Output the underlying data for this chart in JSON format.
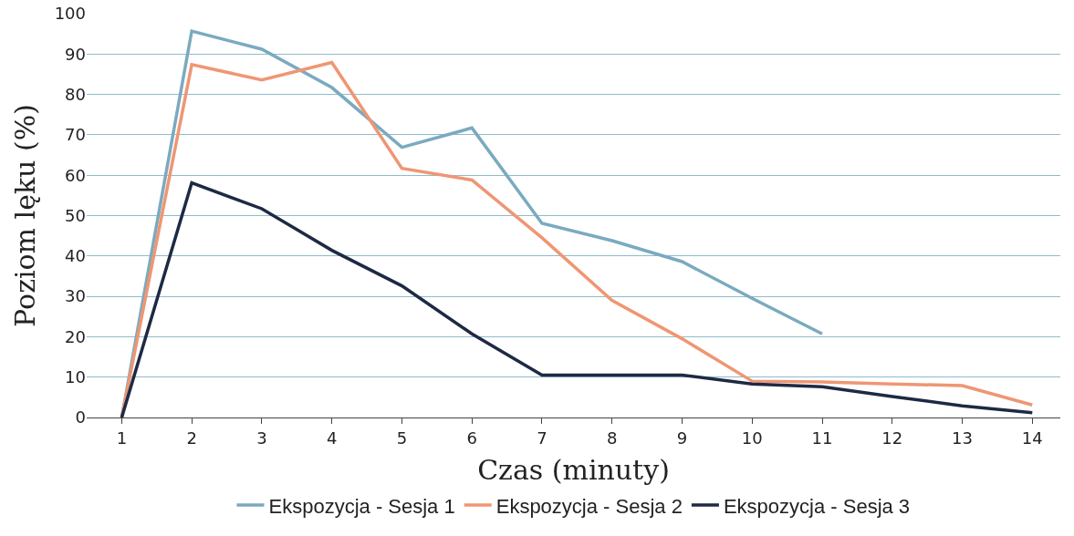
{
  "chart_data": {
    "type": "line",
    "xlabel": "Czas (minuty)",
    "ylabel": "Poziom lęku (%)",
    "x": [
      1,
      2,
      3,
      4,
      5,
      6,
      7,
      8,
      9,
      10,
      11,
      12,
      13,
      14
    ],
    "xlim": [
      0.5,
      14.4
    ],
    "xticks": [
      1,
      2,
      3,
      4,
      5,
      6,
      7,
      8,
      9,
      10,
      11,
      12,
      13,
      14
    ],
    "ylim": [
      0,
      100
    ],
    "yticks": [
      0,
      10,
      20,
      30,
      40,
      50,
      60,
      70,
      80,
      90,
      100
    ],
    "grid": "y",
    "legend": "bottom",
    "marker": "none",
    "line_style": "solid",
    "series": [
      {
        "name": "Ekspozycja - Sesja 1",
        "color": "#7aaabf",
        "values": [
          0,
          95.7,
          91.2,
          81.7,
          66.9,
          71.7,
          48.1,
          43.8,
          38.6,
          29.5,
          20.7,
          null,
          null,
          null
        ]
      },
      {
        "name": "Ekspozycja - Sesja 2",
        "color": "#ef9673",
        "values": [
          0,
          87.4,
          83.6,
          87.9,
          61.7,
          58.8,
          44.5,
          29,
          19.5,
          9,
          8.8,
          8.3,
          7.9,
          3.1
        ]
      },
      {
        "name": "Ekspozycja - Sesja 3",
        "color": "#1e2a44",
        "values": [
          0,
          58.1,
          51.7,
          41.4,
          32.6,
          20.7,
          10.5,
          10.5,
          10.5,
          8.3,
          7.6,
          5.2,
          2.9,
          1.2
        ]
      }
    ]
  }
}
